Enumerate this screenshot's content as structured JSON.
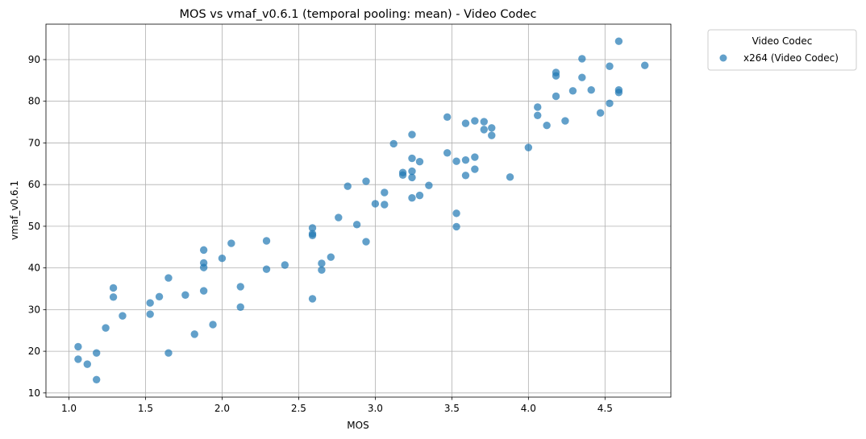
{
  "chart_data": {
    "type": "scatter",
    "title": "MOS vs vmaf_v0.6.1 (temporal pooling: mean) - Video Codec",
    "xlabel": "MOS",
    "ylabel": "vmaf_v0.6.1",
    "xlim": [
      0.85,
      4.93
    ],
    "ylim": [
      9,
      98.5
    ],
    "xticks": [
      1.0,
      1.5,
      2.0,
      2.5,
      3.0,
      3.5,
      4.0,
      4.5
    ],
    "xtick_labels": [
      "1.0",
      "1.5",
      "2.0",
      "2.5",
      "3.0",
      "3.5",
      "4.0",
      "4.5"
    ],
    "yticks": [
      10,
      20,
      30,
      40,
      50,
      60,
      70,
      80,
      90
    ],
    "ytick_labels": [
      "10",
      "20",
      "30",
      "40",
      "50",
      "60",
      "70",
      "80",
      "90"
    ],
    "grid": true,
    "legend": {
      "title": "Video Codec",
      "placement": "outside-top-right"
    },
    "series": [
      {
        "name": "x264 (Video Codec)",
        "color": "#1f77b4",
        "points": [
          [
            1.06,
            21.1
          ],
          [
            1.06,
            18.1
          ],
          [
            1.12,
            16.9
          ],
          [
            1.18,
            19.6
          ],
          [
            1.18,
            13.2
          ],
          [
            1.24,
            25.6
          ],
          [
            1.29,
            35.2
          ],
          [
            1.29,
            33.0
          ],
          [
            1.35,
            28.5
          ],
          [
            1.53,
            31.6
          ],
          [
            1.53,
            28.9
          ],
          [
            1.59,
            33.1
          ],
          [
            1.65,
            37.6
          ],
          [
            1.65,
            19.6
          ],
          [
            1.76,
            33.5
          ],
          [
            1.82,
            24.1
          ],
          [
            1.88,
            44.3
          ],
          [
            1.88,
            41.2
          ],
          [
            1.88,
            40.1
          ],
          [
            1.88,
            34.5
          ],
          [
            1.94,
            26.4
          ],
          [
            2.0,
            42.3
          ],
          [
            2.06,
            45.9
          ],
          [
            2.12,
            35.5
          ],
          [
            2.12,
            30.6
          ],
          [
            2.29,
            46.5
          ],
          [
            2.29,
            39.7
          ],
          [
            2.41,
            40.7
          ],
          [
            2.59,
            49.6
          ],
          [
            2.59,
            48.2
          ],
          [
            2.59,
            47.8
          ],
          [
            2.59,
            32.6
          ],
          [
            2.65,
            41.1
          ],
          [
            2.65,
            39.5
          ],
          [
            2.71,
            42.6
          ],
          [
            2.76,
            52.1
          ],
          [
            2.82,
            59.6
          ],
          [
            2.88,
            50.4
          ],
          [
            2.94,
            60.8
          ],
          [
            2.94,
            46.3
          ],
          [
            3.0,
            55.4
          ],
          [
            3.06,
            58.1
          ],
          [
            3.06,
            55.2
          ],
          [
            3.12,
            69.8
          ],
          [
            3.18,
            62.9
          ],
          [
            3.18,
            62.3
          ],
          [
            3.24,
            72.0
          ],
          [
            3.24,
            66.3
          ],
          [
            3.24,
            63.2
          ],
          [
            3.24,
            61.7
          ],
          [
            3.24,
            56.8
          ],
          [
            3.29,
            65.5
          ],
          [
            3.29,
            57.4
          ],
          [
            3.35,
            59.8
          ],
          [
            3.47,
            76.2
          ],
          [
            3.47,
            67.6
          ],
          [
            3.53,
            65.6
          ],
          [
            3.53,
            53.1
          ],
          [
            3.53,
            49.9
          ],
          [
            3.59,
            74.7
          ],
          [
            3.59,
            65.9
          ],
          [
            3.59,
            62.2
          ],
          [
            3.65,
            75.3
          ],
          [
            3.65,
            66.6
          ],
          [
            3.65,
            63.7
          ],
          [
            3.71,
            75.1
          ],
          [
            3.71,
            73.2
          ],
          [
            3.76,
            73.6
          ],
          [
            3.76,
            71.8
          ],
          [
            3.88,
            61.8
          ],
          [
            4.0,
            68.9
          ],
          [
            4.06,
            78.6
          ],
          [
            4.06,
            76.6
          ],
          [
            4.12,
            74.2
          ],
          [
            4.18,
            86.9
          ],
          [
            4.18,
            86.1
          ],
          [
            4.18,
            81.2
          ],
          [
            4.24,
            75.3
          ],
          [
            4.29,
            82.5
          ],
          [
            4.35,
            90.2
          ],
          [
            4.35,
            85.7
          ],
          [
            4.41,
            82.7
          ],
          [
            4.47,
            77.2
          ],
          [
            4.53,
            88.4
          ],
          [
            4.53,
            79.5
          ],
          [
            4.59,
            94.4
          ],
          [
            4.59,
            82.7
          ],
          [
            4.59,
            82.1
          ],
          [
            4.76,
            88.6
          ]
        ]
      }
    ]
  }
}
